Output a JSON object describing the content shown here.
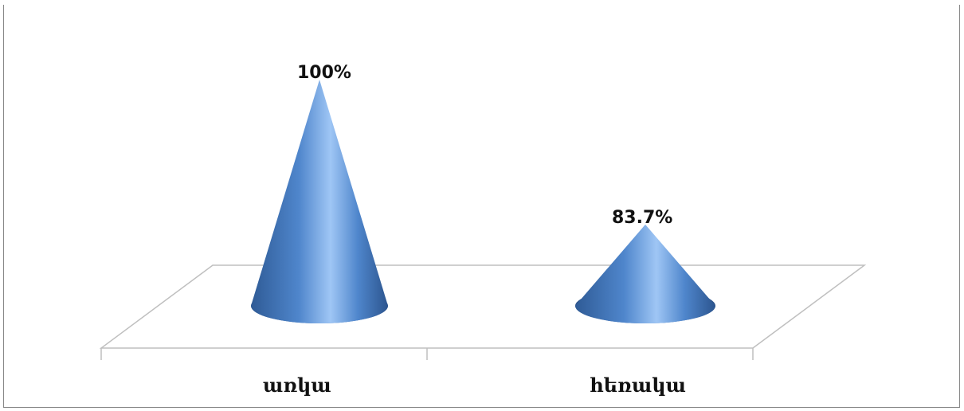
{
  "chart_data": {
    "type": "bar",
    "shape": "cone",
    "categories": [
      "առկա",
      "հեռակա"
    ],
    "values": [
      100,
      83.7
    ],
    "value_labels": [
      "100%",
      "83.7%"
    ],
    "ylim": [
      0,
      100
    ],
    "grid": false,
    "legend": "none",
    "colors": {
      "cone_dark": "#2f5b96",
      "cone_mid": "#4f86cc",
      "cone_light": "#9fc6f5",
      "floor_line": "#bfbfbf",
      "frame": "#888888"
    }
  }
}
